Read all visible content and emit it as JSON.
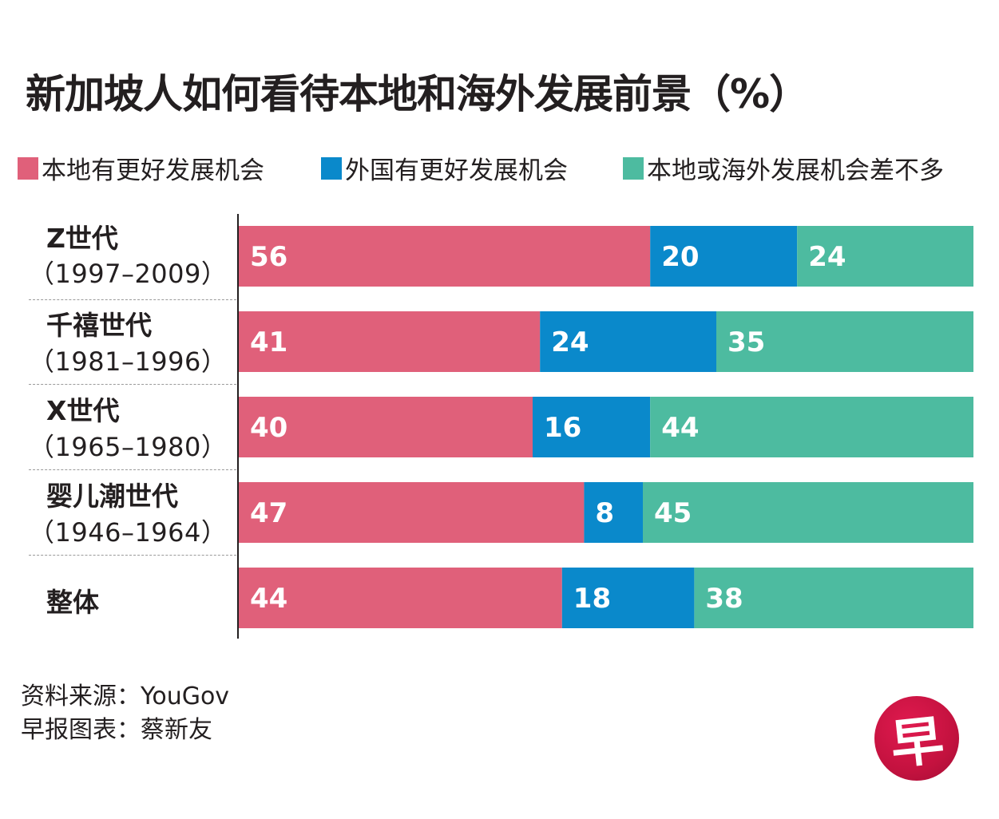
{
  "chart_data": {
    "type": "bar",
    "orientation": "horizontal",
    "stacked": true,
    "title": "新加坡人如何看待本地和海外发展前景（%）",
    "xlabel": "",
    "ylabel": "",
    "xlim": [
      0,
      100
    ],
    "grid": false,
    "legend_position": "top",
    "categories": [
      "Z世代",
      "千禧世代",
      "X世代",
      "婴儿潮世代",
      "整体"
    ],
    "category_years": [
      "（1997–2009）",
      "（1981–1996）",
      "（1965–1980）",
      "（1946–1964）",
      ""
    ],
    "series": [
      {
        "name": "本地有更好发展机会",
        "color": "#e0607a",
        "values": [
          56,
          41,
          40,
          47,
          44
        ]
      },
      {
        "name": "外国有更好发展机会",
        "color": "#0a89cb",
        "values": [
          20,
          24,
          16,
          8,
          18
        ]
      },
      {
        "name": "本地或海外发展机会差不多",
        "color": "#4dbba0",
        "values": [
          24,
          35,
          44,
          45,
          38
        ]
      }
    ]
  },
  "footer": {
    "source": "资料来源：YouGov",
    "credit": "早报图表：蔡新友"
  },
  "logo": {
    "char": "早",
    "color": "#c4123f"
  }
}
